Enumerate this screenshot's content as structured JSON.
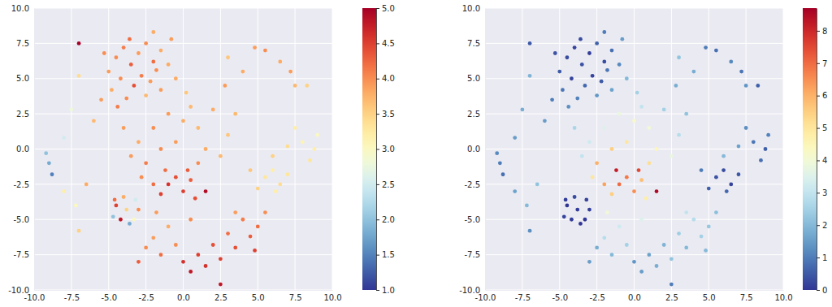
{
  "chart_data": [
    {
      "type": "scatter",
      "grid": true,
      "color": "RdYlBu_r",
      "xlim": [
        -10,
        10
      ],
      "xticks": [
        {
          "value": -10,
          "label": "-10.0"
        },
        -7.5,
        {
          "value": -5,
          "label": "-5.0"
        },
        -2.5,
        {
          "value": 0,
          "label": "0.0"
        },
        2.5,
        {
          "value": 5,
          "label": "5.0"
        },
        7.5,
        {
          "value": 10,
          "label": "10.0"
        }
      ],
      "ylim": [
        -10,
        10
      ],
      "yticks": [
        {
          "value": -10,
          "label": "-10.0"
        },
        -7.5,
        {
          "value": -5,
          "label": "-5.0"
        },
        -2.5,
        {
          "value": 0,
          "label": "0.0"
        },
        2.5,
        {
          "value": 5,
          "label": "5.0"
        },
        7.5,
        {
          "value": 10,
          "label": "10.0"
        }
      ],
      "colorbar": {
        "range": [
          1,
          5
        ],
        "ticks": [
          {
            "value": 1,
            "label": "1.0"
          },
          1.5,
          {
            "value": 2,
            "label": "2.0"
          },
          2.5,
          {
            "value": 3,
            "label": "3.0"
          },
          3.5,
          {
            "value": 4,
            "label": "4.0"
          },
          4.5,
          {
            "value": 5,
            "label": "5.0"
          }
        ]
      },
      "x": [
        -4.5,
        -4.0,
        -3.5,
        -3.0,
        -2.5,
        -2.0,
        -1.5,
        -5.0,
        -4.2,
        -3.3,
        -2.8,
        -2.2,
        -1.8,
        -1.0,
        -0.8,
        -5.3,
        -4.8,
        -3.8,
        -2.5,
        -1.5,
        -3.6,
        -2.0,
        -4.4,
        -5.5,
        -0.5,
        -1.0,
        0.0,
        1.0,
        -2.0,
        0.5,
        2.0,
        -0.5,
        1.5,
        -1.5,
        3.0,
        -3.0,
        2.5,
        -4.0,
        1.0,
        -2.5,
        3.5,
        -3.5,
        0.2,
        2.8,
        -6.0,
        -1.0,
        0.0,
        -0.5,
        0.5,
        -2.0,
        -1.5,
        0.8,
        -2.8,
        0.3,
        -1.2,
        0.5,
        1.5,
        2.5,
        3.5,
        4.5,
        5.0,
        4.0,
        3.0,
        2.0,
        1.0,
        5.5,
        3.5,
        0.0,
        4.8,
        -2.5,
        -1.5,
        -0.5,
        -2.0,
        -1.0,
        -3.0,
        0.5,
        -1.8,
        -3.8,
        -4.5,
        -3.2,
        -4.2,
        -3.3,
        -4.7,
        -3.0,
        -4.0,
        -3.6,
        -4.6,
        5.5,
        6.0,
        6.5,
        5.0,
        7.0,
        4.5,
        6.2,
        8.0,
        8.8,
        9.0,
        8.5,
        7.5,
        7.0,
        6.0,
        4.8,
        5.5,
        6.5,
        7.2,
        7.5,
        4.0,
        3.0,
        -9.0,
        -9.2,
        -8.8,
        -8.0,
        -7.5,
        -8.0,
        -7.2,
        -7.0,
        -6.5,
        -7.0,
        -7.0,
        2.5,
        8.3,
        1.5
      ],
      "y": [
        6.5,
        7.2,
        6.0,
        6.8,
        7.5,
        6.2,
        7.0,
        5.5,
        5.0,
        4.5,
        5.2,
        4.8,
        5.6,
        6.0,
        7.8,
        6.8,
        4.2,
        3.6,
        3.8,
        4.2,
        7.8,
        8.3,
        3.0,
        3.5,
        5.0,
        2.5,
        2.0,
        1.5,
        1.5,
        3.0,
        2.8,
        0.5,
        0.0,
        0.0,
        1.0,
        0.5,
        -0.5,
        1.5,
        -1.0,
        -1.0,
        2.5,
        -0.5,
        4.0,
        4.5,
        2.0,
        -2.5,
        -3.0,
        -2.0,
        -2.2,
        -2.5,
        -3.2,
        -3.5,
        -2.0,
        -1.5,
        -1.5,
        -8.7,
        -8.3,
        -7.8,
        -7.0,
        -6.2,
        -5.5,
        -5.0,
        -6.0,
        -6.8,
        -7.5,
        -4.5,
        -4.5,
        -8.0,
        -7.2,
        -7.0,
        -7.5,
        -6.8,
        -6.3,
        -5.5,
        -8.0,
        -5.0,
        -4.5,
        -4.3,
        -4.0,
        -3.6,
        -5.0,
        -5.0,
        -4.8,
        -4.3,
        -3.4,
        -5.3,
        -3.6,
        -2.0,
        -1.5,
        -2.5,
        -2.8,
        -1.8,
        -1.5,
        -3.0,
        0.5,
        0.0,
        1.0,
        -0.8,
        1.5,
        0.2,
        -0.5,
        7.2,
        7.0,
        6.2,
        5.5,
        4.5,
        5.5,
        6.5,
        -1.0,
        -0.3,
        -1.8,
        0.8,
        2.8,
        -3.0,
        -4.0,
        -5.8,
        -2.5,
        5.2,
        7.5,
        -9.6,
        4.5,
        -3.0
      ],
      "z": [
        4.0,
        4.1,
        4.3,
        3.9,
        4.0,
        4.2,
        3.8,
        3.9,
        4.0,
        4.4,
        4.1,
        3.9,
        4.0,
        3.8,
        3.9,
        4.0,
        3.8,
        4.0,
        3.7,
        3.9,
        4.2,
        3.8,
        4.1,
        3.9,
        3.8,
        3.9,
        3.8,
        3.7,
        4.0,
        3.7,
        3.8,
        3.9,
        3.8,
        4.0,
        3.6,
        3.8,
        3.7,
        3.9,
        4.0,
        4.1,
        3.7,
        3.9,
        3.6,
        3.9,
        3.7,
        4.6,
        4.5,
        4.4,
        4.3,
        4.2,
        4.5,
        4.4,
        4.0,
        4.3,
        4.2,
        4.8,
        4.6,
        4.5,
        4.4,
        4.3,
        4.2,
        4.1,
        4.2,
        4.4,
        4.5,
        4.0,
        3.9,
        4.6,
        4.5,
        4.0,
        4.2,
        4.0,
        3.9,
        3.8,
        4.3,
        4.0,
        3.9,
        3.5,
        4.5,
        2.5,
        4.8,
        3.0,
        2.0,
        4.0,
        3.8,
        1.8,
        4.2,
        3.3,
        3.2,
        3.4,
        3.5,
        3.3,
        3.6,
        3.2,
        3.1,
        3.2,
        3.0,
        3.3,
        3.2,
        3.4,
        3.5,
        3.9,
        4.0,
        3.8,
        3.9,
        3.7,
        3.8,
        3.6,
        1.8,
        2.0,
        1.5,
        2.5,
        2.8,
        3.2,
        3.0,
        3.5,
        3.8,
        3.4,
        5.0,
        4.8,
        3.5,
        4.9
      ]
    },
    {
      "type": "scatter",
      "grid": true,
      "color": "RdYlBu_r",
      "xlim": [
        -10,
        10
      ],
      "xticks": [
        {
          "value": -10,
          "label": "-10.0"
        },
        -7.5,
        {
          "value": -5,
          "label": "-5.0"
        },
        -2.5,
        {
          "value": 0,
          "label": "0.0"
        },
        2.5,
        {
          "value": 5,
          "label": "5.0"
        },
        7.5,
        {
          "value": 10,
          "label": "10.0"
        }
      ],
      "ylim": [
        -10,
        10
      ],
      "yticks": [
        {
          "value": -10,
          "label": "-10.0"
        },
        -7.5,
        {
          "value": -5,
          "label": "-5.0"
        },
        -2.5,
        {
          "value": 0,
          "label": "0.0"
        },
        2.5,
        {
          "value": 5,
          "label": "5.0"
        },
        7.5,
        {
          "value": 10,
          "label": "10.0"
        }
      ],
      "colorbar": {
        "range": [
          0,
          8.7
        ],
        "ticks": [
          0,
          1,
          2,
          3,
          4,
          5,
          6,
          7,
          8
        ]
      },
      "x": [
        -4.5,
        -4.0,
        -3.5,
        -3.0,
        -2.5,
        -2.0,
        -1.5,
        -5.0,
        -4.2,
        -3.3,
        -2.8,
        -2.2,
        -1.8,
        -1.0,
        -0.8,
        -5.3,
        -4.8,
        -3.8,
        -2.5,
        -1.5,
        -3.6,
        -2.0,
        -4.4,
        -5.5,
        -0.5,
        -1.0,
        0.0,
        1.0,
        -2.0,
        0.5,
        2.0,
        -0.5,
        1.5,
        -1.5,
        3.0,
        -3.0,
        2.5,
        -4.0,
        1.0,
        -2.5,
        3.5,
        -3.5,
        0.2,
        2.8,
        -6.0,
        -1.0,
        0.0,
        -0.5,
        0.5,
        -2.0,
        -1.5,
        0.8,
        -2.8,
        0.3,
        -1.2,
        0.5,
        1.5,
        2.5,
        3.5,
        4.5,
        5.0,
        4.0,
        3.0,
        2.0,
        1.0,
        5.5,
        3.5,
        0.0,
        4.8,
        -2.5,
        -1.5,
        -0.5,
        -2.0,
        -1.0,
        -3.0,
        0.5,
        -1.8,
        -3.8,
        -4.5,
        -3.2,
        -4.2,
        -3.3,
        -4.7,
        -3.0,
        -4.0,
        -3.6,
        -4.6,
        5.5,
        6.0,
        6.5,
        5.0,
        7.0,
        4.5,
        6.2,
        8.0,
        8.8,
        9.0,
        8.5,
        7.5,
        7.0,
        6.0,
        4.8,
        5.5,
        6.5,
        7.2,
        7.5,
        4.0,
        3.0,
        -9.0,
        -9.2,
        -8.8,
        -8.0,
        -7.5,
        -8.0,
        -7.2,
        -7.0,
        -6.5,
        -7.0,
        -7.0,
        2.5,
        8.3,
        1.5
      ],
      "y": [
        6.5,
        7.2,
        6.0,
        6.8,
        7.5,
        6.2,
        7.0,
        5.5,
        5.0,
        4.5,
        5.2,
        4.8,
        5.6,
        6.0,
        7.8,
        6.8,
        4.2,
        3.6,
        3.8,
        4.2,
        7.8,
        8.3,
        3.0,
        3.5,
        5.0,
        2.5,
        2.0,
        1.5,
        1.5,
        3.0,
        2.8,
        0.5,
        0.0,
        0.0,
        1.0,
        0.5,
        -0.5,
        1.5,
        -1.0,
        -1.0,
        2.5,
        -0.5,
        4.0,
        4.5,
        2.0,
        -2.5,
        -3.0,
        -2.0,
        -2.2,
        -2.5,
        -3.2,
        -3.5,
        -2.0,
        -1.5,
        -1.5,
        -8.7,
        -8.3,
        -7.8,
        -7.0,
        -6.2,
        -5.5,
        -5.0,
        -6.0,
        -6.8,
        -7.5,
        -4.5,
        -4.5,
        -8.0,
        -7.2,
        -7.0,
        -7.5,
        -6.8,
        -6.3,
        -5.5,
        -8.0,
        -5.0,
        -4.5,
        -4.3,
        -4.0,
        -3.6,
        -5.0,
        -5.0,
        -4.8,
        -4.3,
        -3.4,
        -5.3,
        -3.6,
        -2.0,
        -1.5,
        -2.5,
        -2.8,
        -1.8,
        -1.5,
        -3.0,
        0.5,
        0.0,
        1.0,
        -0.8,
        1.5,
        0.2,
        -0.5,
        7.2,
        7.0,
        6.2,
        5.5,
        4.5,
        5.5,
        6.5,
        -1.0,
        -0.3,
        -1.8,
        0.8,
        2.8,
        -3.0,
        -4.0,
        -5.8,
        -2.5,
        5.2,
        7.5,
        -9.6,
        4.5,
        -3.0
      ],
      "z": [
        0.3,
        0.2,
        0.4,
        0.1,
        0.6,
        0.3,
        0.8,
        0.5,
        0.2,
        0.7,
        0.2,
        0.5,
        0.9,
        1.2,
        1.5,
        0.4,
        0.9,
        1.1,
        1.4,
        1.6,
        0.3,
        1.0,
        1.3,
        1.0,
        2.0,
        3.8,
        4.2,
        4.0,
        3.5,
        3.0,
        2.5,
        5.0,
        4.5,
        5.5,
        2.8,
        3.2,
        3.8,
        2.6,
        5.2,
        6.0,
        2.2,
        3.0,
        2.5,
        1.8,
        1.5,
        7.0,
        6.5,
        6.8,
        5.8,
        6.2,
        5.5,
        4.8,
        5.0,
        7.5,
        8.2,
        1.5,
        1.8,
        2.2,
        2.0,
        2.5,
        2.3,
        2.8,
        2.4,
        1.9,
        1.6,
        2.1,
        3.0,
        1.4,
        2.0,
        1.8,
        2.0,
        2.5,
        2.8,
        3.2,
        1.5,
        3.5,
        4.0,
        0.1,
        0.0,
        0.2,
        0.1,
        0.0,
        0.2,
        0.1,
        0.3,
        0.0,
        0.1,
        0.4,
        0.3,
        0.2,
        0.6,
        0.5,
        1.0,
        0.7,
        0.9,
        0.6,
        1.1,
        0.8,
        1.3,
        1.6,
        2.0,
        1.0,
        0.8,
        1.2,
        0.9,
        1.4,
        1.8,
        2.2,
        1.0,
        1.2,
        0.8,
        1.5,
        1.8,
        1.6,
        2.0,
        1.3,
        2.2,
        1.9,
        0.5,
        1.0,
        0.6,
        8.5
      ]
    }
  ]
}
